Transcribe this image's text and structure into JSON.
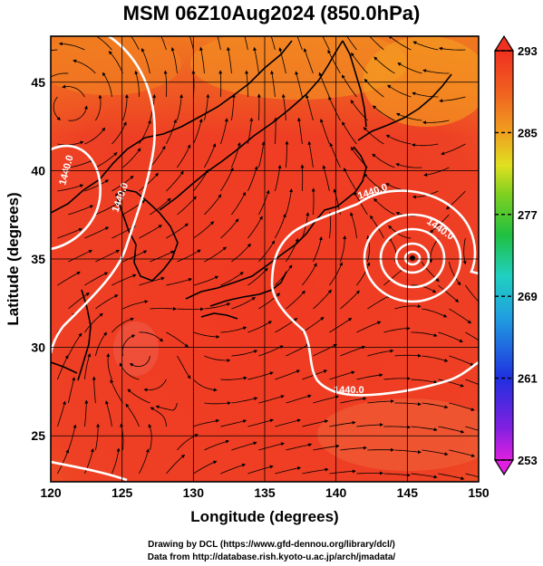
{
  "title": "MSM 06Z10Aug2024 (850.0hPa)",
  "axes": {
    "xlabel": "Longitude (degrees)",
    "ylabel": "Latitude  (degrees)",
    "xticks": [
      "120",
      "125",
      "130",
      "135",
      "140",
      "145",
      "150"
    ],
    "yticks": [
      "25",
      "30",
      "35",
      "40",
      "45"
    ],
    "xlim": [
      120,
      150
    ],
    "ylim": [
      22.4,
      47.6
    ]
  },
  "colorbar": {
    "ticks": [
      "293",
      "285",
      "277",
      "269",
      "261",
      "253"
    ],
    "range": [
      253,
      293
    ],
    "colors": [
      "#e020e0",
      "#8020e0",
      "#2030e0",
      "#20a0e0",
      "#20d0c0",
      "#20c040",
      "#80d020",
      "#e0e020",
      "#f0a020",
      "#f06020",
      "#f03020"
    ]
  },
  "contours": {
    "labels": [
      "1440.0",
      "1440.0",
      "1440.0",
      "1440.0",
      "1440.0"
    ],
    "color": "#ffffff"
  },
  "low_center": {
    "lon": 145.2,
    "lat": 35.9
  },
  "footer": {
    "line1": "Drawing by DCL (https://www.gfd-dennou.org/library/dcl/)",
    "line2": "Data from http://database.rish.kyoto-u.ac.jp/arch/jmadata/"
  },
  "chart_data": {
    "type": "heatmap",
    "title": "MSM 06Z10Aug2024 (850.0hPa)",
    "xlabel": "Longitude (degrees)",
    "ylabel": "Latitude  (degrees)",
    "xlim": [
      120,
      150
    ],
    "ylim": [
      22.4,
      47.6
    ],
    "x_ticks": [
      120,
      125,
      130,
      135,
      140,
      145,
      150
    ],
    "y_ticks": [
      25,
      30,
      35,
      40,
      45
    ],
    "colorbar_range": [
      253,
      293
    ],
    "colorbar_ticks": [
      293,
      285,
      277,
      269,
      261,
      253
    ],
    "contour_levels": [
      1440.0
    ],
    "grid": true
  }
}
